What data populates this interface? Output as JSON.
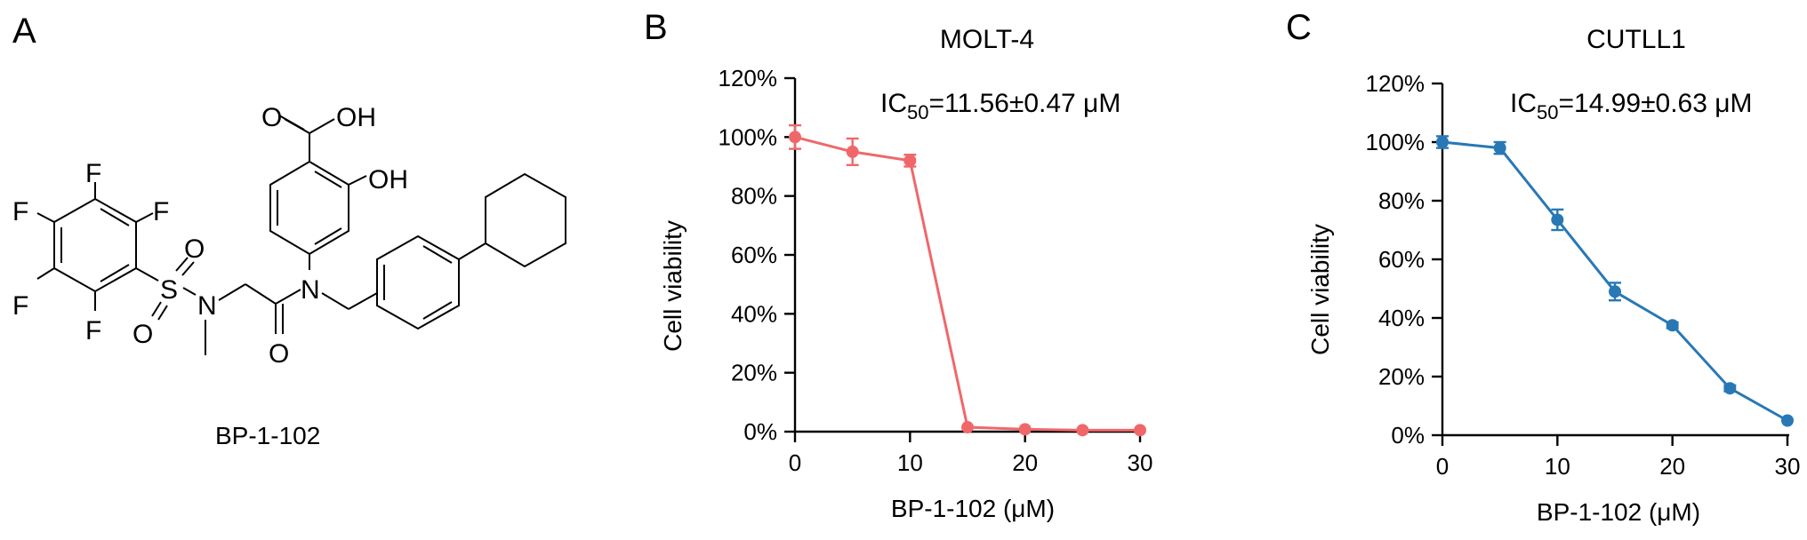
{
  "panels": {
    "A": "A",
    "B": "B",
    "C": "C"
  },
  "structure": {
    "compound_label": "BP-1-102",
    "atoms": {
      "F": "F",
      "O": "O",
      "OH": "OH",
      "S": "S",
      "N": "N"
    }
  },
  "chart_data": [
    {
      "type": "line",
      "title": "MOLT-4",
      "ic50_label": "IC",
      "ic50_subscript": "50",
      "ic50_value": "=11.56±0.47 μM",
      "xlabel": "BP-1-102 (μM)",
      "ylabel": "Cell viability",
      "xlim": [
        0,
        30
      ],
      "ylim": [
        0,
        120
      ],
      "x_ticks": [
        "0",
        "10",
        "20",
        "30"
      ],
      "x_tick_values": [
        0,
        10,
        20,
        30
      ],
      "y_ticks": [
        "0%",
        "20%",
        "40%",
        "60%",
        "80%",
        "100%",
        "120%"
      ],
      "y_tick_values": [
        0,
        20,
        40,
        60,
        80,
        100,
        120
      ],
      "color": "#f0676a",
      "x": [
        0,
        5,
        10,
        15,
        20,
        25,
        30
      ],
      "y": [
        100,
        95,
        92,
        1.5,
        0.8,
        0.5,
        0.5
      ],
      "error": [
        4,
        4.5,
        2,
        0.5,
        0.4,
        0.3,
        0.3
      ]
    },
    {
      "type": "line",
      "title": "CUTLL1",
      "ic50_label": "IC",
      "ic50_subscript": "50",
      "ic50_value": "=14.99±0.63 μM",
      "xlabel": "BP-1-102 (μM)",
      "ylabel": "Cell viability",
      "xlim": [
        0,
        30
      ],
      "ylim": [
        0,
        120
      ],
      "x_ticks": [
        "0",
        "10",
        "20",
        "30"
      ],
      "x_tick_values": [
        0,
        10,
        20,
        30
      ],
      "y_ticks": [
        "0%",
        "20%",
        "40%",
        "60%",
        "80%",
        "100%",
        "120%"
      ],
      "y_tick_values": [
        0,
        20,
        40,
        60,
        80,
        100,
        120
      ],
      "color": "#2878b5",
      "x": [
        0,
        5,
        10,
        15,
        20,
        25,
        30
      ],
      "y": [
        100,
        98,
        73.5,
        49,
        37.5,
        16,
        5
      ],
      "error": [
        2,
        2,
        3.5,
        3,
        1,
        1,
        0.5
      ]
    }
  ]
}
